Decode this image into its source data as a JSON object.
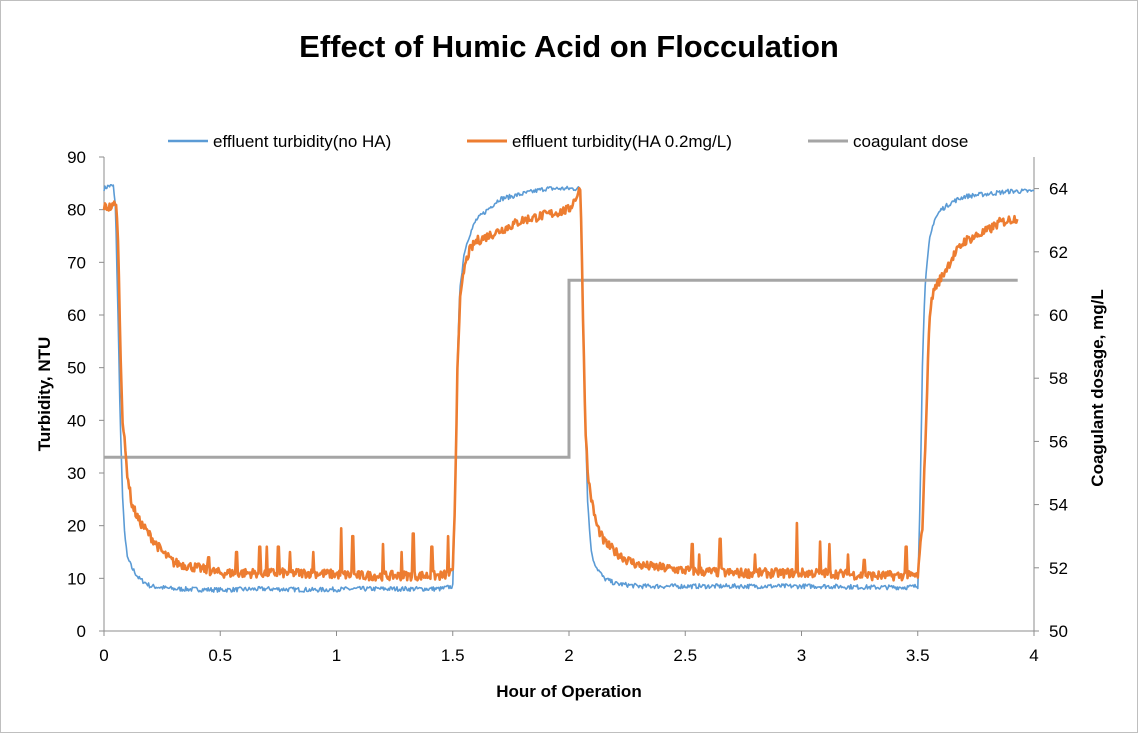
{
  "chart_data": {
    "type": "line",
    "title": "Effect of Humic Acid on Flocculation",
    "xlabel": "Hour of Operation",
    "ylabel": "Turbidity, NTU",
    "y2label": "Coagulant dosage, mg/L",
    "xlim": [
      0,
      4
    ],
    "ylim": [
      0,
      90
    ],
    "y2lim": [
      50,
      65
    ],
    "x_ticks": [
      "0",
      "0.5",
      "1",
      "1.5",
      "2",
      "2.5",
      "3",
      "3.5",
      "4"
    ],
    "y_ticks": [
      "0",
      "10",
      "20",
      "30",
      "40",
      "50",
      "60",
      "70",
      "80",
      "90"
    ],
    "y2_ticks": [
      "50",
      "52",
      "54",
      "56",
      "58",
      "60",
      "62",
      "64"
    ],
    "legend_position": "top",
    "grid": false,
    "series": [
      {
        "name": "effluent turbidity(no HA)",
        "color": "#5b9bd5",
        "axis": "left",
        "x": [
          0,
          0.02,
          0.04,
          0.05,
          0.06,
          0.07,
          0.08,
          0.09,
          0.1,
          0.12,
          0.15,
          0.2,
          0.3,
          0.5,
          0.7,
          0.9,
          1.1,
          1.3,
          1.45,
          1.5,
          1.51,
          1.52,
          1.53,
          1.55,
          1.57,
          1.6,
          1.65,
          1.7,
          1.8,
          1.9,
          2.0,
          2.05,
          2.06,
          2.07,
          2.08,
          2.09,
          2.1,
          2.12,
          2.15,
          2.2,
          2.3,
          2.5,
          2.7,
          2.9,
          3.1,
          3.3,
          3.45,
          3.5,
          3.51,
          3.52,
          3.53,
          3.55,
          3.57,
          3.6,
          3.65,
          3.7,
          3.8,
          3.9,
          4.0
        ],
        "values": [
          84,
          84.5,
          84.5,
          80,
          60,
          40,
          25,
          18,
          14,
          12,
          10,
          8.5,
          8,
          7.8,
          8,
          7.8,
          8,
          8,
          8,
          8.5,
          25,
          50,
          65,
          72,
          75,
          78,
          80,
          82,
          83,
          84,
          84,
          84,
          60,
          40,
          25,
          18,
          14,
          12,
          10,
          9,
          8.5,
          8.5,
          8.5,
          8.5,
          8.5,
          8.3,
          8.3,
          8.5,
          25,
          50,
          65,
          74,
          78,
          80,
          81.5,
          82.5,
          83,
          83.5,
          83.5
        ]
      },
      {
        "name": "effluent turbidity(HA 0.2mg/L)",
        "color": "#ed7d31",
        "axis": "left",
        "x": [
          0,
          0.04,
          0.05,
          0.06,
          0.07,
          0.08,
          0.1,
          0.12,
          0.15,
          0.2,
          0.25,
          0.3,
          0.4,
          0.5,
          0.7,
          0.9,
          1.1,
          1.3,
          1.45,
          1.5,
          1.51,
          1.52,
          1.53,
          1.55,
          1.57,
          1.6,
          1.65,
          1.7,
          1.8,
          1.9,
          2.0,
          2.05,
          2.06,
          2.07,
          2.08,
          2.1,
          2.12,
          2.15,
          2.2,
          2.25,
          2.3,
          2.4,
          2.5,
          2.7,
          2.9,
          3.1,
          3.3,
          3.45,
          3.5,
          3.52,
          3.54,
          3.55,
          3.57,
          3.6,
          3.65,
          3.7,
          3.8,
          3.85,
          3.93
        ],
        "values": [
          80.5,
          80.5,
          82,
          75,
          55,
          40,
          30,
          24,
          21,
          18,
          15,
          13,
          12,
          11,
          11,
          11,
          10.5,
          10.5,
          10.5,
          11,
          25,
          50,
          62,
          69,
          72,
          74,
          75,
          76,
          78,
          79,
          80,
          84,
          60,
          40,
          30,
          24,
          20,
          17,
          15,
          13.5,
          12.5,
          12,
          11.5,
          11,
          11,
          11,
          10.5,
          10.5,
          10.5,
          20,
          45,
          60,
          65,
          67,
          71,
          74,
          76,
          77.5,
          78.5
        ]
      },
      {
        "name": "coagulant dose",
        "color": "#a5a5a5",
        "axis": "right",
        "x": [
          0,
          2.0,
          2.0,
          3.93
        ],
        "values": [
          55.5,
          55.5,
          61.1,
          61.1
        ]
      }
    ],
    "spikes": [
      {
        "x": 0.45,
        "y": 14
      },
      {
        "x": 0.57,
        "y": 15
      },
      {
        "x": 0.67,
        "y": 16
      },
      {
        "x": 0.7,
        "y": 16
      },
      {
        "x": 0.75,
        "y": 16
      },
      {
        "x": 0.8,
        "y": 15
      },
      {
        "x": 0.9,
        "y": 15
      },
      {
        "x": 1.02,
        "y": 19.5
      },
      {
        "x": 1.07,
        "y": 18
      },
      {
        "x": 1.2,
        "y": 16.5
      },
      {
        "x": 1.28,
        "y": 15
      },
      {
        "x": 1.33,
        "y": 18.5
      },
      {
        "x": 1.41,
        "y": 16
      },
      {
        "x": 1.48,
        "y": 18
      },
      {
        "x": 2.53,
        "y": 16.5
      },
      {
        "x": 2.56,
        "y": 14.5
      },
      {
        "x": 2.65,
        "y": 17.5
      },
      {
        "x": 2.8,
        "y": 14.5
      },
      {
        "x": 2.98,
        "y": 20.5
      },
      {
        "x": 3.08,
        "y": 17
      },
      {
        "x": 3.12,
        "y": 16.5
      },
      {
        "x": 3.2,
        "y": 14.5
      },
      {
        "x": 3.27,
        "y": 13.5
      },
      {
        "x": 3.45,
        "y": 16
      }
    ]
  }
}
